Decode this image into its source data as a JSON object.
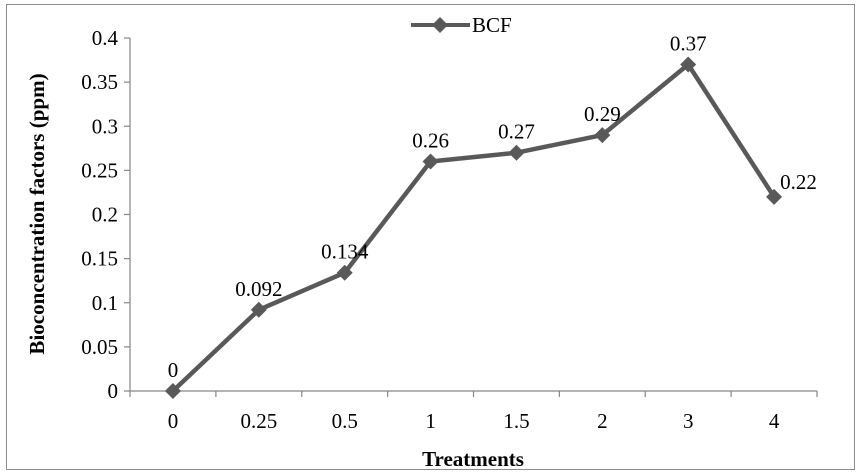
{
  "chart_data": {
    "type": "line",
    "categories": [
      "0",
      "0.25",
      "0.5",
      "1",
      "1.5",
      "2",
      "3",
      "4"
    ],
    "series": [
      {
        "name": "BCF",
        "values": [
          0,
          0.092,
          0.134,
          0.26,
          0.27,
          0.29,
          0.37,
          0.22
        ],
        "data_labels": [
          "0",
          "0.092",
          "0.134",
          "0.26",
          "0.27",
          "0.29",
          "0.37",
          "0.22"
        ],
        "color": "#595959"
      }
    ],
    "yticks": [
      "0",
      "0.05",
      "0.1",
      "0.15",
      "0.2",
      "0.25",
      "0.3",
      "0.35",
      "0.4"
    ],
    "xlabel": "Treatments",
    "ylabel": "Bioconcentration factors (ppm)",
    "ylim": [
      0,
      0.4
    ],
    "grid": false,
    "legend_position": "top",
    "marker": "diamond"
  }
}
